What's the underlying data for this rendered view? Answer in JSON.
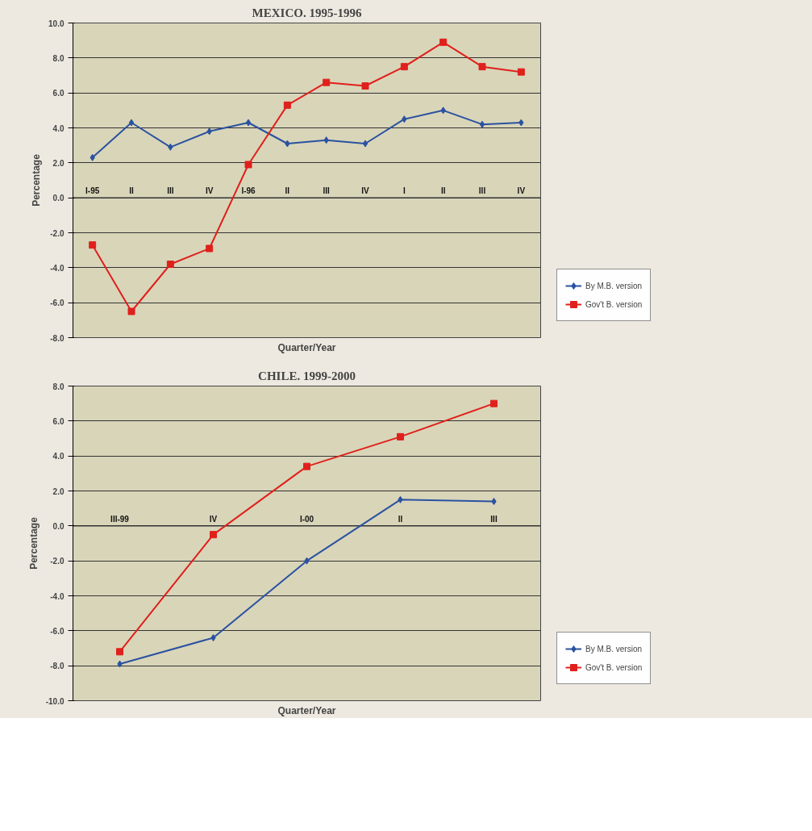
{
  "chart_data": [
    {
      "type": "line",
      "title": "MEXICO. 1995-1996",
      "xlabel": "Quarter/Year",
      "ylabel": "Percentage",
      "categories": [
        "I-95",
        "II",
        "III",
        "IV",
        "I-96",
        "II",
        "III",
        "IV",
        "I",
        "II",
        "III",
        "IV"
      ],
      "series": [
        {
          "name": "By M.B. version",
          "color": "#2a52a0",
          "marker": "diamond",
          "values": [
            2.3,
            4.3,
            2.9,
            3.8,
            4.3,
            3.1,
            3.3,
            3.1,
            4.5,
            5.0,
            4.2,
            4.3
          ]
        },
        {
          "name": "Gov't B. version",
          "color": "#e0201c",
          "marker": "square",
          "values": [
            -2.7,
            -6.5,
            -3.8,
            -2.9,
            1.9,
            5.3,
            6.6,
            6.4,
            7.5,
            8.9,
            7.5,
            7.2
          ]
        }
      ],
      "ylim": [
        -8,
        10
      ],
      "yticks": [
        {
          "value": -8,
          "label": "-8.0"
        },
        {
          "value": -6,
          "label": "-6.0"
        },
        {
          "value": -4,
          "label": "-4.0"
        },
        {
          "value": -2,
          "label": "-2.0"
        },
        {
          "value": 0,
          "label": "0.0"
        },
        {
          "value": 2,
          "label": "2.0"
        },
        {
          "value": 4,
          "label": "4.0"
        },
        {
          "value": 6,
          "label": "6.0"
        },
        {
          "value": 8,
          "label": "8.0"
        },
        {
          "value": 10,
          "label": "10.0"
        }
      ],
      "grid": "y",
      "legend": "right",
      "line_style": "solid"
    },
    {
      "type": "line",
      "title": "CHILE. 1999-2000",
      "xlabel": "Quarter/Year",
      "ylabel": "Percentage",
      "categories": [
        "III-99",
        "IV",
        "I-00",
        "II",
        "III"
      ],
      "series": [
        {
          "name": "By M.B. version",
          "color": "#2a52a0",
          "marker": "diamond",
          "values": [
            -7.9,
            -6.4,
            -2.0,
            1.5,
            1.4
          ]
        },
        {
          "name": "Gov't B. version",
          "color": "#e0201c",
          "marker": "square",
          "values": [
            -7.2,
            -0.5,
            3.4,
            5.1,
            7.0
          ]
        }
      ],
      "ylim": [
        -10,
        8
      ],
      "yticks": [
        {
          "value": -10,
          "label": "-10.0"
        },
        {
          "value": -8,
          "label": "-8.0"
        },
        {
          "value": -6,
          "label": "-6.0"
        },
        {
          "value": -4,
          "label": "-4.0"
        },
        {
          "value": -2,
          "label": "-2.0"
        },
        {
          "value": 0,
          "label": "0.0"
        },
        {
          "value": 2,
          "label": "2.0"
        },
        {
          "value": 4,
          "label": "4.0"
        },
        {
          "value": 6,
          "label": "6.0"
        },
        {
          "value": 8,
          "label": "8.0"
        }
      ],
      "grid": "y",
      "legend": "right",
      "line_style": "solid"
    }
  ]
}
